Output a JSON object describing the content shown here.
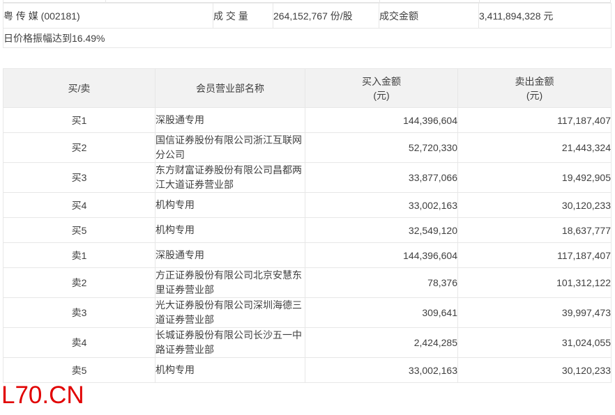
{
  "watermark": {
    "text": "L70.CN",
    "color": "#e10000"
  },
  "colors": {
    "table_border": "#e7e7e7",
    "header_background": "#f2f2f2",
    "body_text": "#3f3f3f"
  },
  "info_table": {
    "stock_name": "粤 传 媒 (002181)",
    "volume_label": "成 交 量",
    "volume_value": "264,152,767 份/股",
    "turnover_label": "成交金额",
    "turnover_value": "3,411,894,328 元",
    "notice": "日价格振幅达到16.49%"
  },
  "trade_table": {
    "headers": {
      "side": "买/卖",
      "branch": "会员营业部名称",
      "buy_line1": "买入金额",
      "buy_line2": "(元)",
      "sell_line1": "卖出金额",
      "sell_line2": "(元)"
    },
    "rows": [
      {
        "side": "买1",
        "branch": "深股通专用",
        "buy": "144,396,604",
        "sell": "117,187,407"
      },
      {
        "side": "买2",
        "branch": "国信证券股份有限公司浙江互联网分公司",
        "buy": "52,720,330",
        "sell": "21,443,324"
      },
      {
        "side": "买3",
        "branch": "东方财富证券股份有限公司昌都两江大道证券营业部",
        "buy": "33,877,066",
        "sell": "19,492,905"
      },
      {
        "side": "买4",
        "branch": "机构专用",
        "buy": "33,002,163",
        "sell": "30,120,233"
      },
      {
        "side": "买5",
        "branch": "机构专用",
        "buy": "32,549,120",
        "sell": "18,637,777"
      },
      {
        "side": "卖1",
        "branch": "深股通专用",
        "buy": "144,396,604",
        "sell": "117,187,407"
      },
      {
        "side": "卖2",
        "branch": "方正证券股份有限公司北京安慧东里证券营业部",
        "buy": "78,376",
        "sell": "101,312,122"
      },
      {
        "side": "卖3",
        "branch": "光大证券股份有限公司深圳海德三道证券营业部",
        "buy": "309,641",
        "sell": "39,997,473"
      },
      {
        "side": "卖4",
        "branch": "长城证券股份有限公司长沙五一中路证券营业部",
        "buy": "2,424,285",
        "sell": "31,024,055"
      },
      {
        "side": "卖5",
        "branch": "机构专用",
        "buy": "33,002,163",
        "sell": "30,120,233"
      }
    ]
  }
}
